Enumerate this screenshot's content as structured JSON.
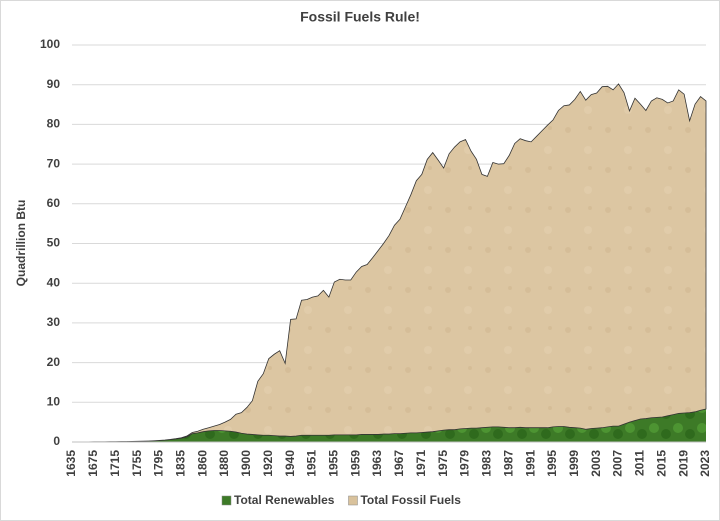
{
  "chart_data": {
    "type": "stacked_area",
    "title": "Fossil Fuels Rule!",
    "y_label": "Quadrillion Btu",
    "categories": [
      "1635",
      null,
      null,
      null,
      "1675",
      null,
      null,
      null,
      "1715",
      null,
      null,
      null,
      "1755",
      null,
      null,
      null,
      "1795",
      null,
      null,
      null,
      "1835",
      null,
      null,
      null,
      "1860",
      null,
      null,
      null,
      "1880",
      null,
      null,
      null,
      "1900",
      null,
      null,
      null,
      "1920",
      null,
      null,
      null,
      "1940",
      null,
      null,
      null,
      "1951",
      null,
      null,
      null,
      "1955",
      null,
      null,
      null,
      "1959",
      null,
      null,
      null,
      "1963",
      null,
      null,
      null,
      "1967",
      null,
      null,
      null,
      "1971",
      null,
      null,
      null,
      "1975",
      null,
      null,
      null,
      "1979",
      null,
      null,
      null,
      "1983",
      null,
      null,
      null,
      "1987",
      null,
      null,
      null,
      "1991",
      null,
      null,
      null,
      "1995",
      null,
      null,
      null,
      "1999",
      null,
      null,
      null,
      "2003",
      null,
      null,
      null,
      "2007",
      null,
      null,
      null,
      "2011",
      null,
      null,
      null,
      "2015",
      null,
      null,
      null,
      "2019",
      null,
      null,
      null,
      "2023"
    ],
    "series": [
      {
        "name": "Total Renewables",
        "color": "#3d7a27",
        "values": [
          0.02,
          0.03,
          0.03,
          0.04,
          0.05,
          0.06,
          0.07,
          0.08,
          0.1,
          0.11,
          0.13,
          0.15,
          0.18,
          0.21,
          0.25,
          0.3,
          0.38,
          0.47,
          0.6,
          0.75,
          0.95,
          1.3,
          2.1,
          2.3,
          2.6,
          2.8,
          2.9,
          2.9,
          2.8,
          2.7,
          2.5,
          2.2,
          2.0,
          1.9,
          1.8,
          1.7,
          1.7,
          1.6,
          1.5,
          1.5,
          1.4,
          1.5,
          1.7,
          1.7,
          1.7,
          1.7,
          1.7,
          1.7,
          1.8,
          1.8,
          1.8,
          1.8,
          1.8,
          1.9,
          1.9,
          1.9,
          1.9,
          2.0,
          2.0,
          2.1,
          2.1,
          2.2,
          2.3,
          2.3,
          2.4,
          2.5,
          2.6,
          2.8,
          3.0,
          3.1,
          3.1,
          3.3,
          3.4,
          3.5,
          3.5,
          3.6,
          3.7,
          3.8,
          3.8,
          3.7,
          3.6,
          3.6,
          3.7,
          3.6,
          3.6,
          3.6,
          3.6,
          3.6,
          3.8,
          3.9,
          3.9,
          3.7,
          3.6,
          3.5,
          3.2,
          3.4,
          3.5,
          3.6,
          3.8,
          4.0,
          4.0,
          4.5,
          5.0,
          5.4,
          5.8,
          5.9,
          6.1,
          6.2,
          6.3,
          6.6,
          6.9,
          7.2,
          7.3,
          7.4,
          7.6,
          8.0,
          8.3
        ]
      },
      {
        "name": "Total Fossil Fuels",
        "color": "#d9c29c",
        "values": [
          0,
          0,
          0,
          0,
          0,
          0,
          0,
          0,
          0,
          0,
          0,
          0,
          0,
          0.01,
          0.01,
          0.02,
          0.02,
          0.03,
          0.05,
          0.08,
          0.12,
          0.2,
          0.3,
          0.4,
          0.6,
          0.8,
          1.1,
          1.5,
          2.2,
          3.0,
          4.5,
          5.2,
          6.7,
          8.5,
          13.5,
          15.5,
          19.3,
          20.5,
          21.5,
          18.3,
          29.5,
          29.5,
          34.0,
          34.2,
          34.8,
          35.1,
          36.5,
          34.8,
          38.5,
          39.2,
          39,
          39,
          41,
          42.3,
          42.8,
          44.5,
          46.3,
          48,
          50,
          52.5,
          54,
          57,
          60,
          63.5,
          65,
          68.7,
          70.3,
          68.2,
          66,
          69.5,
          71.2,
          72.3,
          72.8,
          69.8,
          67.7,
          63.8,
          63.2,
          66.6,
          66.2,
          66.4,
          68.6,
          71.6,
          72.7,
          72.3,
          72,
          73.4,
          74.8,
          76.2,
          77.3,
          79.6,
          80.8,
          81.2,
          82.7,
          84.8,
          82.9,
          84.1,
          84.4,
          85.9,
          85.8,
          84.7,
          86.2,
          83.5,
          78.4,
          81.2,
          79.3,
          77.6,
          79.8,
          80.5,
          80,
          78.8,
          79,
          81.5,
          80.3,
          73.5,
          77.5,
          79,
          77.6
        ]
      }
    ],
    "ylim": [
      0,
      100
    ],
    "yticks": [
      0,
      10,
      20,
      30,
      40,
      50,
      60,
      70,
      80,
      90,
      100
    ],
    "grid": true,
    "legend": "bottom"
  }
}
